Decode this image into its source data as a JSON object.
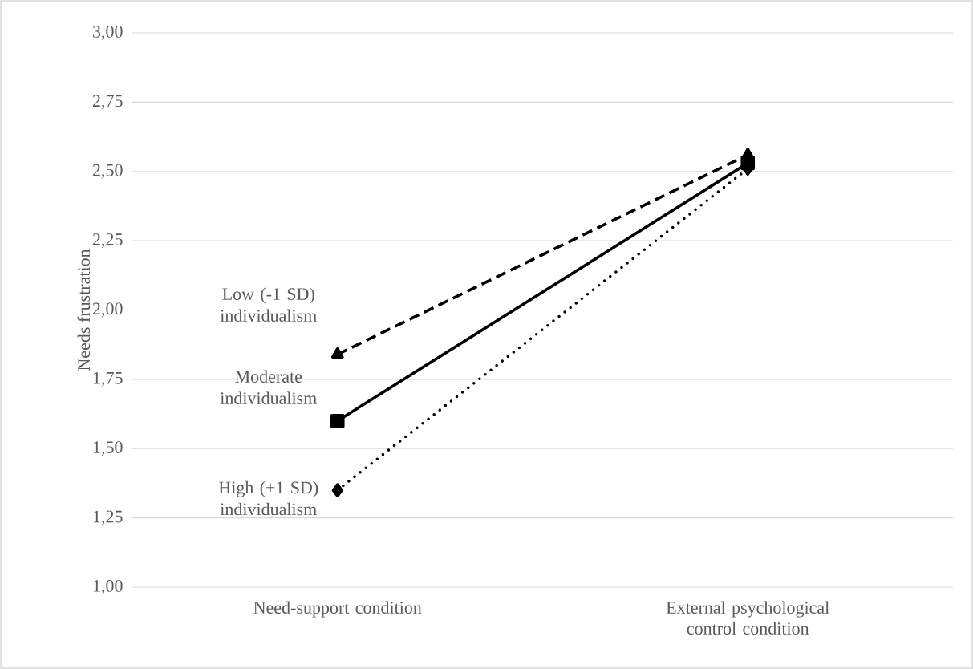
{
  "chart_data": {
    "type": "line",
    "ylabel": "Needs frustration",
    "categories": [
      "Need-support condition",
      "External psychological control condition"
    ],
    "series": [
      {
        "name": "Low (-1 SD) individualism",
        "color": "#000000",
        "values": [
          1.84,
          2.56
        ],
        "marker": "triangle",
        "line_style": "dashed"
      },
      {
        "name": "Moderate individualism",
        "color": "#000000",
        "values": [
          1.6,
          2.53
        ],
        "marker": "square",
        "line_style": "solid"
      },
      {
        "name": "High (+1 SD) individualism",
        "color": "#000000",
        "values": [
          1.35,
          2.51
        ],
        "marker": "diamond",
        "line_style": "dotted"
      }
    ],
    "ylim": [
      1,
      3
    ],
    "yticks": [
      {
        "value": 1,
        "label": "1,00"
      },
      {
        "value": 1.25,
        "label": "1,25"
      },
      {
        "value": 1.5,
        "label": "1,50"
      },
      {
        "value": 1.75,
        "label": "1,75"
      },
      {
        "value": 2,
        "label": "2,00"
      },
      {
        "value": 2.25,
        "label": "2,25"
      },
      {
        "value": 2.5,
        "label": "2,50"
      },
      {
        "value": 2.75,
        "label": "2,75"
      },
      {
        "value": 3,
        "label": "3,00"
      }
    ],
    "grid": "y"
  }
}
